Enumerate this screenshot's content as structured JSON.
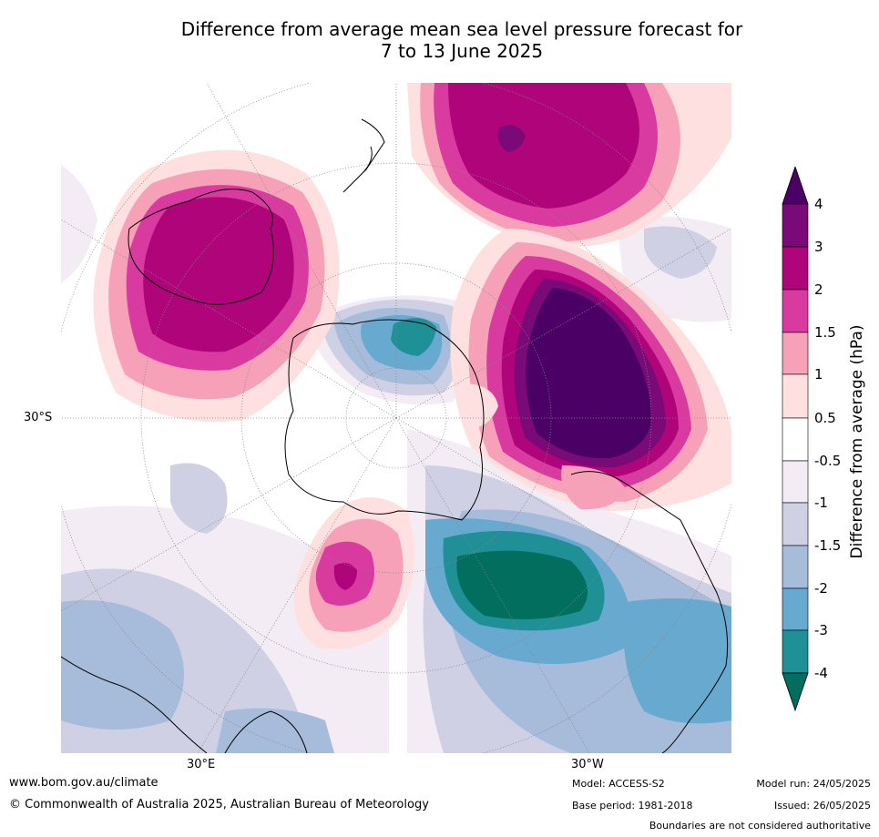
{
  "title_line1": "Difference from average mean sea level pressure forecast for",
  "title_line2": "7 to 13 June 2025",
  "map": {
    "lat_label": "30°S",
    "lon_label_left": "30°E",
    "lon_label_right": "30°W",
    "colors": {
      "p4": "#4a0065",
      "p3": "#7a0a78",
      "p2": "#b0047a",
      "p15": "#d93a9f",
      "p1": "#f7a1b8",
      "p05": "#fde0df",
      "neutral": "#ffffff",
      "n05": "#f3ecf4",
      "n1": "#cfd0e4",
      "n15": "#a6bcda",
      "n2": "#68a9d0",
      "n3": "#1f9096",
      "n4": "#026e5e",
      "land": "#000000",
      "grid": "#888888"
    }
  },
  "colorbar": {
    "title": "Difference from average (hPa)",
    "ticks": [
      "4",
      "3",
      "2",
      "1.5",
      "1",
      "0.5",
      "-0.5",
      "-1",
      "-1.5",
      "-2",
      "-3",
      "-4"
    ]
  },
  "footer": {
    "url": "www.bom.gov.au/climate",
    "copyright": "© Commonwealth of Australia 2025, Australian Bureau of Meteorology",
    "model": "Model: ACCESS-S2",
    "base_period": "Base period: 1981-2018",
    "model_run": "Model run: 24/05/2025",
    "issued": "Issued: 26/05/2025",
    "disclaimer": "Boundaries are not considered authoritative"
  }
}
